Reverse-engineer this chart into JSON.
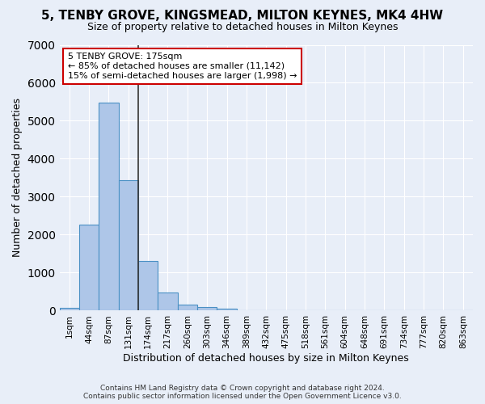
{
  "title": "5, TENBY GROVE, KINGSMEAD, MILTON KEYNES, MK4 4HW",
  "subtitle": "Size of property relative to detached houses in Milton Keynes",
  "xlabel": "Distribution of detached houses by size in Milton Keynes",
  "ylabel": "Number of detached properties",
  "footer_line1": "Contains HM Land Registry data © Crown copyright and database right 2024.",
  "footer_line2": "Contains public sector information licensed under the Open Government Licence v3.0.",
  "annotation_line1": "5 TENBY GROVE: 175sqm",
  "annotation_line2": "← 85% of detached houses are smaller (11,142)",
  "annotation_line3": "15% of semi-detached houses are larger (1,998) →",
  "bar_values": [
    75,
    2270,
    5470,
    3440,
    1310,
    470,
    155,
    85,
    45,
    0,
    0,
    0,
    0,
    0,
    0,
    0,
    0,
    0,
    0,
    0,
    0
  ],
  "categories": [
    "1sqm",
    "44sqm",
    "87sqm",
    "131sqm",
    "174sqm",
    "217sqm",
    "260sqm",
    "303sqm",
    "346sqm",
    "389sqm",
    "432sqm",
    "475sqm",
    "518sqm",
    "561sqm",
    "604sqm",
    "648sqm",
    "691sqm",
    "734sqm",
    "777sqm",
    "820sqm",
    "863sqm"
  ],
  "bar_color": "#aec6e8",
  "bar_edge_color": "#4a90c4",
  "vline_x_index": 4,
  "vline_color": "#333333",
  "background_color": "#e8eef8",
  "grid_color": "#ffffff",
  "ylim": [
    0,
    7000
  ],
  "yticks": [
    0,
    1000,
    2000,
    3000,
    4000,
    5000,
    6000,
    7000
  ],
  "annotation_box_color": "#ffffff",
  "annotation_box_edge_color": "#cc0000"
}
